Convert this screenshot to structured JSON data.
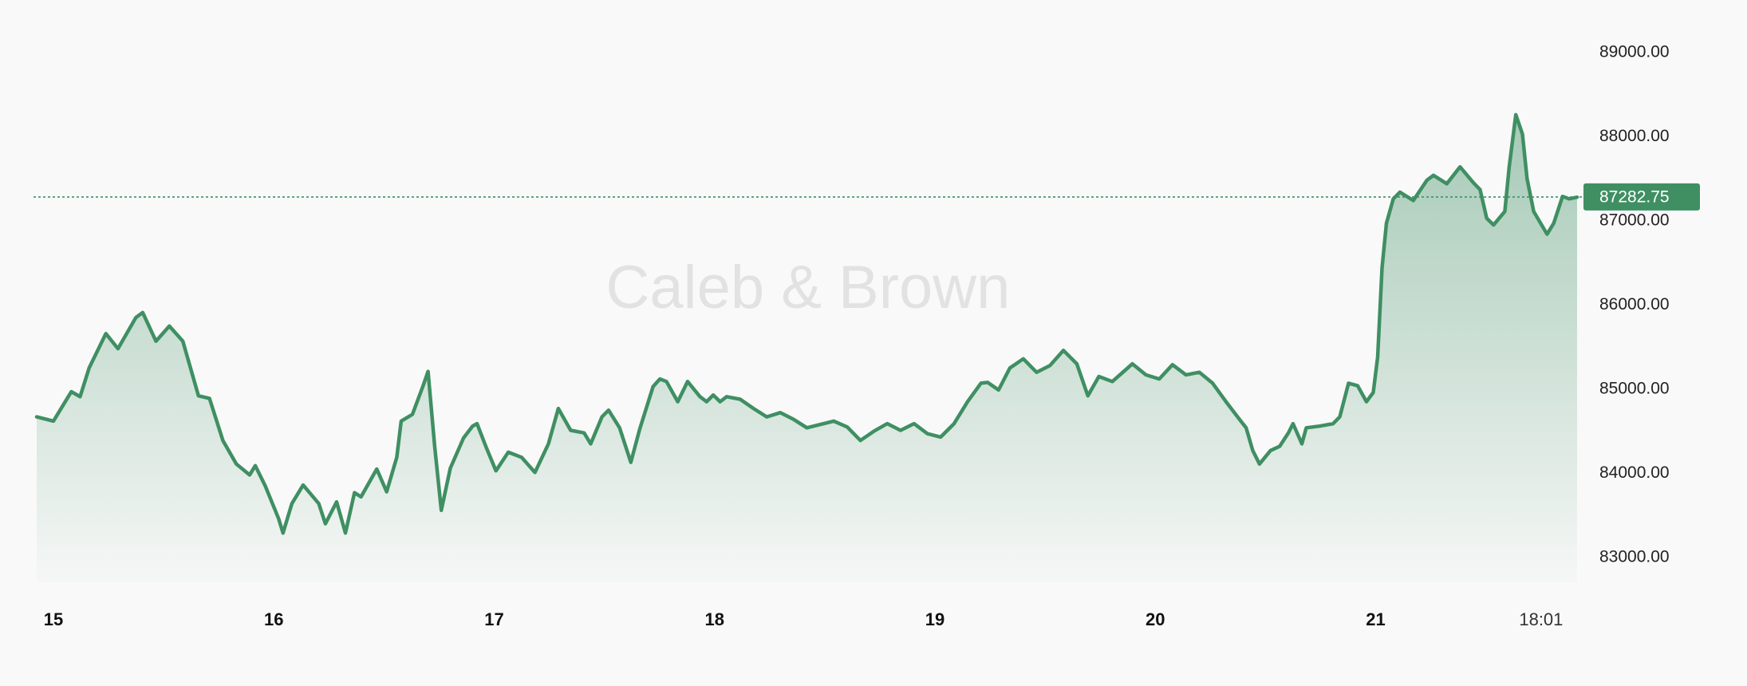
{
  "chart_data": {
    "type": "line",
    "watermark": "Caleb & Brown",
    "color": "#3f8f63",
    "current_price": 87282.75,
    "x": [
      14.924,
      15.0,
      15.081,
      15.121,
      15.162,
      15.238,
      15.293,
      15.374,
      15.405,
      15.465,
      15.526,
      15.587,
      15.658,
      15.708,
      15.769,
      15.83,
      15.89,
      15.916,
      15.961,
      16.022,
      16.042,
      16.082,
      16.133,
      16.204,
      16.234,
      16.285,
      16.325,
      16.366,
      16.396,
      16.467,
      16.512,
      16.558,
      16.578,
      16.629,
      16.679,
      16.7,
      16.73,
      16.76,
      16.801,
      16.861,
      16.902,
      16.922,
      16.962,
      17.008,
      17.064,
      17.124,
      17.185,
      17.246,
      17.291,
      17.347,
      17.408,
      17.438,
      17.489,
      17.519,
      17.569,
      17.62,
      17.66,
      17.721,
      17.752,
      17.782,
      17.833,
      17.878,
      17.934,
      17.964,
      17.994,
      18.025,
      18.055,
      18.116,
      18.177,
      18.237,
      18.298,
      18.359,
      18.419,
      18.481,
      18.541,
      18.602,
      18.662,
      18.723,
      18.784,
      18.844,
      18.905,
      18.966,
      19.026,
      19.087,
      19.148,
      19.209,
      19.239,
      19.289,
      19.34,
      19.401,
      19.461,
      19.522,
      19.583,
      19.644,
      19.694,
      19.744,
      19.805,
      19.866,
      19.896,
      19.957,
      20.018,
      20.078,
      20.139,
      20.2,
      20.26,
      20.321,
      20.382,
      20.412,
      20.442,
      20.473,
      20.523,
      20.564,
      20.604,
      20.625,
      20.665,
      20.685,
      20.746,
      20.807,
      20.837,
      20.877,
      20.918,
      20.958,
      20.989,
      21.009,
      21.029,
      21.049,
      21.08,
      21.11,
      21.171,
      21.232,
      21.262,
      21.323,
      21.383,
      21.444,
      21.474,
      21.504,
      21.535,
      21.586,
      21.606,
      21.636,
      21.666,
      21.687,
      21.717,
      21.778,
      21.808,
      21.848,
      21.878,
      21.914
    ],
    "values": [
      84670,
      84620,
      84970,
      84910,
      85250,
      85660,
      85480,
      85850,
      85910,
      85570,
      85750,
      85570,
      84920,
      84890,
      84390,
      84110,
      83980,
      84090,
      83850,
      83460,
      83290,
      83640,
      83860,
      83640,
      83400,
      83660,
      83290,
      83770,
      83720,
      84050,
      83780,
      84190,
      84620,
      84700,
      85050,
      85210,
      84320,
      83560,
      84060,
      84420,
      84560,
      84590,
      84320,
      84030,
      84250,
      84190,
      84010,
      84350,
      84770,
      84510,
      84480,
      84350,
      84670,
      84750,
      84540,
      84130,
      84520,
      85030,
      85120,
      85090,
      84850,
      85090,
      84910,
      84850,
      84930,
      84850,
      84910,
      84880,
      84770,
      84670,
      84720,
      84640,
      84540,
      84580,
      84620,
      84550,
      84390,
      84500,
      84590,
      84510,
      84590,
      84470,
      84430,
      84590,
      84850,
      85070,
      85080,
      84990,
      85250,
      85360,
      85200,
      85280,
      85460,
      85300,
      84920,
      85150,
      85090,
      85230,
      85300,
      85170,
      85120,
      85290,
      85170,
      85200,
      85070,
      84850,
      84640,
      84540,
      84270,
      84110,
      84270,
      84320,
      84480,
      84590,
      84350,
      84540,
      84560,
      84590,
      84670,
      85070,
      85040,
      84850,
      84960,
      85380,
      86440,
      86970,
      87260,
      87340,
      87240,
      87480,
      87540,
      87440,
      87640,
      87450,
      87370,
      87030,
      86950,
      87110,
      87640,
      88260,
      88030,
      87500,
      87110,
      86840,
      86970,
      87290,
      87260,
      87280
    ],
    "xlim": [
      14.924,
      21.914
    ],
    "xticks": [
      15,
      16,
      17,
      18,
      19,
      20,
      21,
      {
        "value": 21.7507,
        "label": "18:01"
      }
    ],
    "ylim": [
      82700,
      89400
    ],
    "yticks": [
      {
        "value": 83000,
        "label": "83000.00"
      },
      {
        "value": 84000,
        "label": "84000.00"
      },
      {
        "value": 85000,
        "label": "85000.00"
      },
      {
        "value": 86000,
        "label": "86000.00"
      },
      {
        "value": 87000,
        "label": "87000.00"
      },
      {
        "value": 88000,
        "label": "88000.00"
      },
      {
        "value": 89000,
        "label": "89000.00"
      }
    ]
  }
}
